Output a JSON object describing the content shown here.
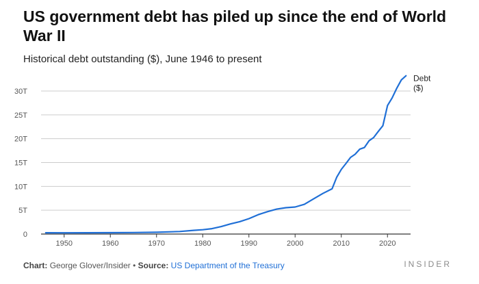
{
  "title": "US government debt has piled up since the end of World War II",
  "subtitle": "Historical debt outstanding ($), June 1946 to present",
  "footer": {
    "chart_label": "Chart:",
    "chart_author": "George Glover/Insider",
    "separator": "•",
    "source_label": "Source:",
    "source_name": "US Department of the Treasury"
  },
  "brand": "INSIDER",
  "colors": {
    "line": "#1f6fd6",
    "grid": "#cccccc",
    "axis": "#333333",
    "link": "#1f6fd6"
  },
  "chart_data": {
    "type": "line",
    "title": "US government debt has piled up since the end of World War II",
    "subtitle": "Historical debt outstanding ($), June 1946 to present",
    "xlabel": "",
    "ylabel": "",
    "xlim": [
      1945,
      2025
    ],
    "ylim": [
      0,
      30
    ],
    "x_ticks": [
      1950,
      1960,
      1970,
      1980,
      1990,
      2000,
      2010,
      2020
    ],
    "x_tick_labels": [
      "1950",
      "1960",
      "1970",
      "1980",
      "1990",
      "2000",
      "2010",
      "2020"
    ],
    "y_ticks": [
      0,
      5,
      10,
      15,
      20,
      25,
      30
    ],
    "y_tick_labels": [
      "0",
      "5T",
      "10T",
      "15T",
      "20T",
      "25T",
      "30T"
    ],
    "grid": "horizontal",
    "series": [
      {
        "name": "Debt ($)",
        "label_lines": [
          "Debt",
          "($)"
        ],
        "x": [
          1946,
          1950,
          1955,
          1960,
          1965,
          1970,
          1975,
          1978,
          1980,
          1982,
          1984,
          1986,
          1988,
          1990,
          1992,
          1994,
          1996,
          1998,
          2000,
          2002,
          2004,
          2006,
          2008,
          2009,
          2010,
          2011,
          2012,
          2013,
          2014,
          2015,
          2016,
          2017,
          2018,
          2019,
          2020,
          2021,
          2022,
          2023,
          2024
        ],
        "values": [
          0.27,
          0.26,
          0.27,
          0.29,
          0.32,
          0.37,
          0.53,
          0.78,
          0.91,
          1.14,
          1.57,
          2.13,
          2.6,
          3.23,
          4.06,
          4.69,
          5.22,
          5.53,
          5.67,
          6.23,
          7.38,
          8.51,
          9.49,
          11.9,
          13.56,
          14.79,
          16.07,
          16.74,
          17.82,
          18.15,
          19.57,
          20.24,
          21.52,
          22.72,
          26.95,
          28.53,
          30.57,
          32.33,
          33.2
        ]
      }
    ]
  }
}
